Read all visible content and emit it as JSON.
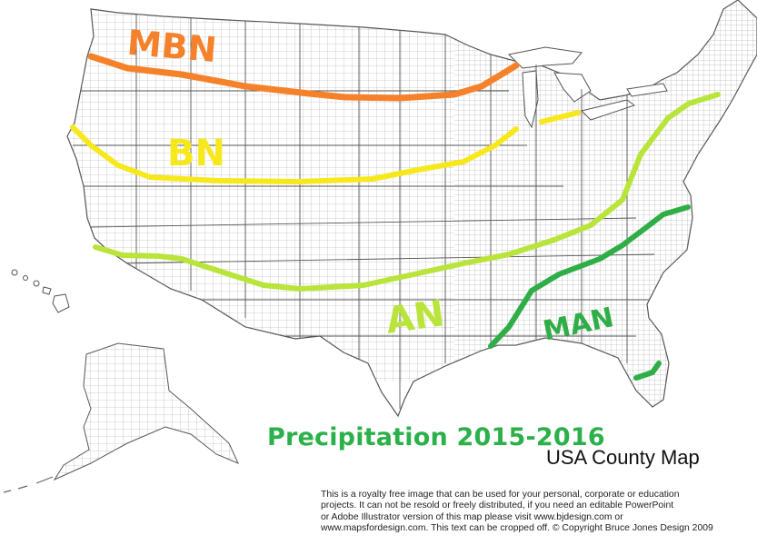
{
  "title": "Precipitation 2015-2016",
  "subtitle": "USA County Map",
  "credit_lines": [
    "This is a royalty free image that can be used for your personal, corporate or education",
    "projects. It can not be resold or freely distributed, if you need an editable PowerPoint",
    "or Adobe Illustrator version of this map please visit www.bjdesign.com or",
    "www.mapsfordesign.com.  This text can be cropped off.  © Copyright Bruce Jones Design 2009"
  ],
  "zones": [
    {
      "label": "MBN",
      "color": "#f5822a"
    },
    {
      "label": "BN",
      "color": "#f7e81c"
    },
    {
      "label": "AN",
      "color": "#b9e43a"
    },
    {
      "label": "MAN",
      "color": "#2fae47"
    }
  ],
  "colors": {
    "county_fill": "#ffffff",
    "county_line": "#9a9a9a",
    "state_line": "#555555",
    "title": "#2bb04a"
  }
}
